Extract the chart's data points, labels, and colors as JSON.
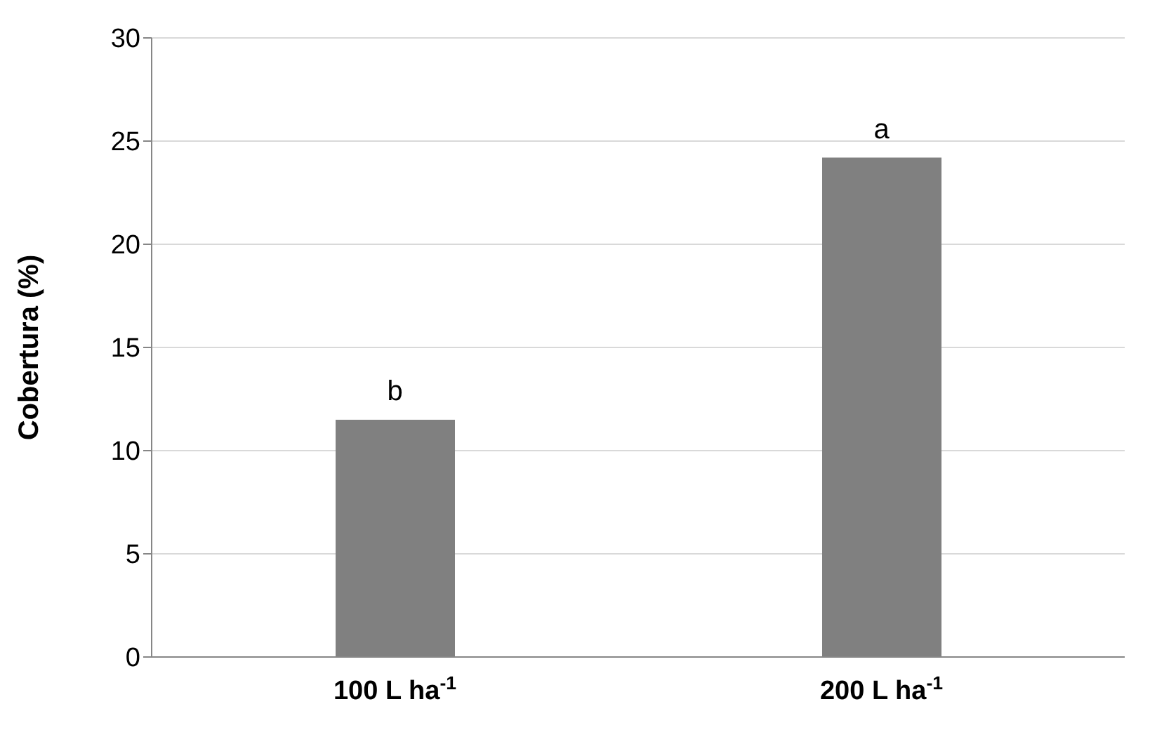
{
  "chart_data": {
    "type": "bar",
    "ylabel": "Cobertura (%)",
    "categories": [
      "100 L ha$^{-1}$",
      "200 L ha$^{-1}$"
    ],
    "values": [
      11.5,
      24.2
    ],
    "color": "#808080",
    "ylim": [
      0,
      30
    ],
    "yticks": [
      0,
      5,
      10,
      15,
      20,
      25,
      30
    ],
    "grid": "y",
    "annotations": [
      {
        "text": "b",
        "x": "100 L ha$^{-1}$",
        "y": 11.5
      },
      {
        "text": "a",
        "x": "200 L ha$^{-1}$",
        "y": 24.2
      }
    ]
  }
}
